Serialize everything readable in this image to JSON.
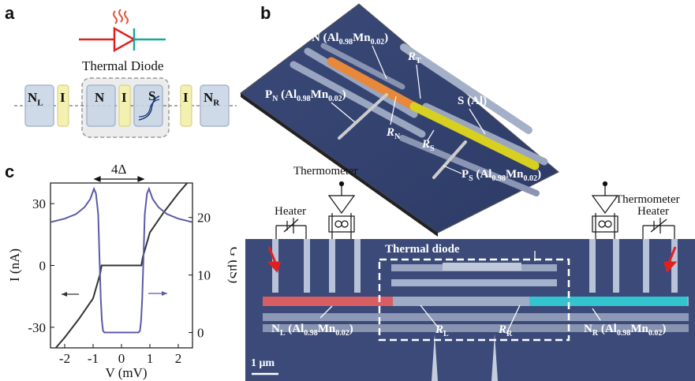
{
  "panels": {
    "a": "a",
    "b": "b",
    "c": "c"
  },
  "panel_a": {
    "title": "Thermal Diode",
    "junction": [
      {
        "name": "N",
        "sub": "L"
      },
      {
        "name": "I",
        "sub": ""
      },
      {
        "name": "N",
        "sub": ""
      },
      {
        "name": "I",
        "sub": ""
      },
      {
        "name": "S",
        "sub": ""
      },
      {
        "name": "I",
        "sub": ""
      },
      {
        "name": "N",
        "sub": "R"
      }
    ],
    "colors": {
      "diode_left": "#e02020",
      "diode_right": "#1aa79a",
      "heat": "#e05a3a",
      "insulator": "#f3f0b0",
      "metal": "#c9d6e6"
    }
  },
  "panel_b": {
    "top_labels": {
      "n_label": "N (Al",
      "n_sub1": "0.98",
      "n_mid": "Mn",
      "n_sub2": "0.02",
      "n_end": ")",
      "rt": "R",
      "rt_sub": "T",
      "pn": "P",
      "pn_sub": "N",
      "pn_rest": " (Al",
      "pn_sub1": "0.98",
      "pn_mid": "Mn",
      "pn_sub2": "0.02",
      "pn_end": ")",
      "s_label": "S (Al)",
      "rn": "R",
      "rn_sub": "N",
      "rs": "R",
      "rs_sub": "S",
      "ps": "P",
      "ps_sub": "S",
      "ps_rest": " (Al",
      "ps_sub1": "0.98",
      "ps_mid": "Mn",
      "ps_sub2": "0.02",
      "ps_end": ")"
    },
    "circuit": {
      "thermometer_left": "Thermometer",
      "thermometer_right": "Thermometer",
      "heater_left": "Heater",
      "heater_right": "Heater"
    },
    "bottom_labels": {
      "thermal_diode": "Thermal diode",
      "nl": "N",
      "nl_sub": "L",
      "nl_rest": " (Al",
      "nl_sub1": "0.98",
      "nl_mid": "Mn",
      "nl_sub2": "0.02",
      "nl_end": ")",
      "nr": "N",
      "nr_sub": "R",
      "nr_rest": " (Al",
      "nr_sub1": "0.98",
      "nr_mid": "Mn",
      "nr_sub2": "0.02",
      "nr_end": ")",
      "rl": "R",
      "rl_sub": "L",
      "rr": "R",
      "rr_sub": "R",
      "scale": "1 μm"
    },
    "colors": {
      "normal": "#e8883a",
      "superconductor": "#d8d020",
      "nl": "#e05050",
      "nr": "#20c8d0",
      "arrow": "#e02020"
    }
  },
  "chart_data": {
    "type": "line",
    "xlabel": "V (mV)",
    "ylabel_left": "I (nA)",
    "ylabel_right": "G (μS)",
    "annotation": "4Δ",
    "xlim": [
      -2.5,
      2.5
    ],
    "ylim_left": [
      -40,
      40
    ],
    "ylim_right": [
      -2.67,
      26
    ],
    "x_ticks": [
      -2,
      -1,
      0,
      1,
      2
    ],
    "y_left_ticks": [
      -30,
      0,
      30
    ],
    "y_right_ticks": [
      0,
      10,
      20
    ],
    "series": [
      {
        "axis": "left",
        "color": "#333333",
        "x": [
          -2.5,
          -2.0,
          -1.5,
          -1.0,
          -0.75,
          -0.7,
          -0.6,
          -0.4,
          -0.2,
          0,
          0.2,
          0.4,
          0.6,
          0.7,
          0.75,
          1.0,
          1.5,
          2.0,
          2.5
        ],
        "y": [
          -43,
          -35,
          -26,
          -16,
          -4,
          0,
          0,
          0,
          0,
          0,
          0,
          0,
          0,
          0,
          4,
          16,
          26,
          35,
          43
        ]
      },
      {
        "axis": "right",
        "color": "#5a5aa8",
        "x": [
          -2.5,
          -2.0,
          -1.6,
          -1.3,
          -1.1,
          -0.97,
          -0.9,
          -0.85,
          -0.82,
          -0.78,
          -0.73,
          -0.69,
          -0.65,
          -0.6,
          -0.4,
          0,
          0.4,
          0.6,
          0.65,
          0.69,
          0.73,
          0.78,
          0.82,
          0.85,
          0.9,
          0.97,
          1.1,
          1.3,
          1.6,
          2.0,
          2.5
        ],
        "y": [
          19.2,
          19.8,
          20.6,
          21.8,
          23.2,
          25.0,
          24.2,
          22.0,
          20.5,
          14.0,
          6.0,
          2.0,
          0.3,
          0,
          0,
          0,
          0,
          0,
          0.3,
          2.0,
          6.0,
          14.0,
          20.5,
          22.0,
          24.2,
          25.0,
          23.2,
          21.8,
          20.6,
          19.8,
          19.2
        ]
      }
    ]
  }
}
